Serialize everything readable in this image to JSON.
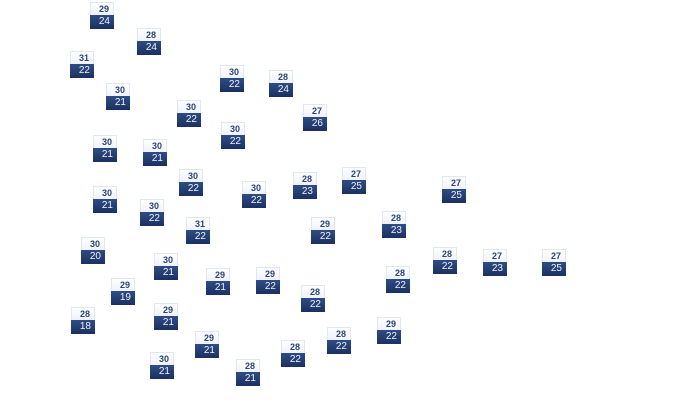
{
  "colors": {
    "high_bg": "#f3f6fc",
    "high_text": "#2d4577",
    "low_bg": "#233a6e",
    "low_text": "#eef2fa"
  },
  "stations": [
    {
      "high": "29",
      "low": "24"
    },
    {
      "high": "28",
      "low": "24"
    },
    {
      "high": "31",
      "low": "22"
    },
    {
      "high": "30",
      "low": "21"
    },
    {
      "high": "30",
      "low": "22"
    },
    {
      "high": "30",
      "low": "22"
    },
    {
      "high": "28",
      "low": "24"
    },
    {
      "high": "27",
      "low": "26"
    },
    {
      "high": "30",
      "low": "22"
    },
    {
      "high": "30",
      "low": "21"
    },
    {
      "high": "30",
      "low": "21"
    },
    {
      "high": "30",
      "low": "22"
    },
    {
      "high": "30",
      "low": "22"
    },
    {
      "high": "28",
      "low": "23"
    },
    {
      "high": "27",
      "low": "25"
    },
    {
      "high": "27",
      "low": "25"
    },
    {
      "high": "30",
      "low": "21"
    },
    {
      "high": "30",
      "low": "22"
    },
    {
      "high": "31",
      "low": "22"
    },
    {
      "high": "29",
      "low": "22"
    },
    {
      "high": "28",
      "low": "23"
    },
    {
      "high": "30",
      "low": "20"
    },
    {
      "high": "30",
      "low": "21"
    },
    {
      "high": "29",
      "low": "21"
    },
    {
      "high": "29",
      "low": "22"
    },
    {
      "high": "28",
      "low": "22"
    },
    {
      "high": "27",
      "low": "23"
    },
    {
      "high": "27",
      "low": "25"
    },
    {
      "high": "28",
      "low": "22"
    },
    {
      "high": "29",
      "low": "19"
    },
    {
      "high": "28",
      "low": "22"
    },
    {
      "high": "28",
      "low": "18"
    },
    {
      "high": "29",
      "low": "21"
    },
    {
      "high": "29",
      "low": "21"
    },
    {
      "high": "28",
      "low": "22"
    },
    {
      "high": "29",
      "low": "22"
    },
    {
      "high": "28",
      "low": "22"
    },
    {
      "high": "30",
      "low": "21"
    },
    {
      "high": "28",
      "low": "21"
    }
  ]
}
